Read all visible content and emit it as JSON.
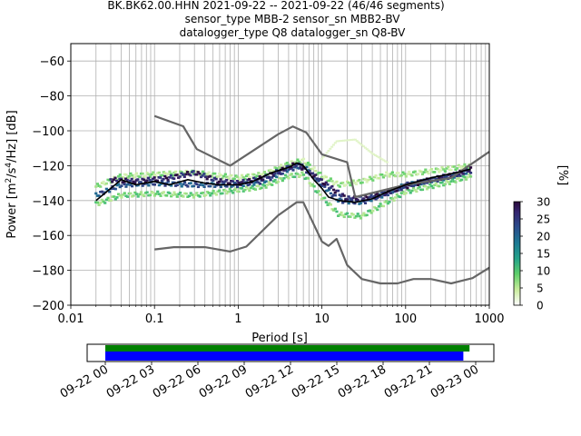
{
  "title_lines": [
    "BK.BK62.00.HHN   2021-09-22 -- 2021-09-22  (46/46 segments)",
    "sensor_type MBB-2 sensor_sn MBB2-BV",
    "datalogger_type Q8 datalogger_sn Q8-BV"
  ],
  "chart_data": {
    "type": "heatmap",
    "xlabel": "Period [s]",
    "ylabel_parts": [
      "Power [m",
      "2",
      "/s",
      "4",
      "/Hz] [dB]"
    ],
    "xscale": "log",
    "xlim": [
      0.01,
      1000
    ],
    "ylim": [
      -200,
      -50
    ],
    "grid": true,
    "x_ticks": [
      {
        "v": 0.01,
        "label": "0.01"
      },
      {
        "v": 0.1,
        "label": "0.1"
      },
      {
        "v": 1,
        "label": "1"
      },
      {
        "v": 10,
        "label": "10"
      },
      {
        "v": 100,
        "label": "100"
      },
      {
        "v": 1000,
        "label": "1000"
      }
    ],
    "y_ticks": [
      {
        "v": -60,
        "label": "−60"
      },
      {
        "v": -80,
        "label": "−80"
      },
      {
        "v": -100,
        "label": "−100"
      },
      {
        "v": -120,
        "label": "−120"
      },
      {
        "v": -140,
        "label": "−140"
      },
      {
        "v": -160,
        "label": "−160"
      },
      {
        "v": -180,
        "label": "−180"
      },
      {
        "v": -200,
        "label": "−200"
      }
    ],
    "noise_model_high": [
      [
        0.1,
        -91.5
      ],
      [
        0.22,
        -97.4
      ],
      [
        0.32,
        -110.5
      ],
      [
        0.8,
        -120
      ],
      [
        3,
        -102
      ],
      [
        4.5,
        -97.5
      ],
      [
        6.5,
        -101
      ],
      [
        10,
        -113.5
      ],
      [
        20,
        -118
      ],
      [
        25,
        -138
      ],
      [
        100,
        -131
      ],
      [
        350,
        -127
      ],
      [
        1000,
        -112
      ]
    ],
    "noise_model_low": [
      [
        0.1,
        -168
      ],
      [
        0.17,
        -166.7
      ],
      [
        0.4,
        -166.7
      ],
      [
        0.8,
        -169.2
      ],
      [
        1.25,
        -166.4
      ],
      [
        3,
        -148.5
      ],
      [
        5,
        -141
      ],
      [
        6,
        -141
      ],
      [
        10,
        -163.5
      ],
      [
        12,
        -166
      ],
      [
        15,
        -162
      ],
      [
        20,
        -177
      ],
      [
        30,
        -185
      ],
      [
        50,
        -187.5
      ],
      [
        80,
        -187.5
      ],
      [
        124,
        -185
      ],
      [
        200,
        -185
      ],
      [
        350,
        -187.5
      ],
      [
        630,
        -184.5
      ],
      [
        1000,
        -178.5
      ]
    ],
    "mean_curve": [
      [
        0.02,
        -140
      ],
      [
        0.03,
        -133
      ],
      [
        0.04,
        -128
      ],
      [
        0.06,
        -131
      ],
      [
        0.1,
        -129
      ],
      [
        0.15,
        -131
      ],
      [
        0.25,
        -128
      ],
      [
        0.4,
        -130
      ],
      [
        0.6,
        -131
      ],
      [
        1,
        -131
      ],
      [
        1.5,
        -129
      ],
      [
        2.5,
        -124
      ],
      [
        4,
        -121
      ],
      [
        5,
        -118.5
      ],
      [
        6,
        -120
      ],
      [
        8,
        -128
      ],
      [
        10,
        -133
      ],
      [
        12,
        -138
      ],
      [
        16,
        -140
      ],
      [
        25,
        -141
      ],
      [
        40,
        -139
      ],
      [
        60,
        -135
      ],
      [
        100,
        -131
      ],
      [
        200,
        -127
      ],
      [
        400,
        -124
      ],
      [
        600,
        -122
      ]
    ],
    "density_bands": [
      {
        "x": [
          0.02,
          0.04,
          0.1,
          0.3,
          1,
          2,
          4,
          6,
          10,
          16,
          30,
          60,
          100,
          300,
          600
        ],
        "y": [
          -132,
          -126,
          -125,
          -124,
          -127,
          -125,
          -119,
          -117,
          -126,
          -131,
          -129,
          -125,
          -125,
          -122,
          -120
        ],
        "pct": 6
      },
      {
        "x": [
          0.02,
          0.04,
          0.1,
          0.3,
          1,
          2,
          4,
          6,
          10,
          16,
          30,
          60,
          100,
          300,
          600
        ],
        "y": [
          -142,
          -137,
          -136,
          -137,
          -134,
          -132,
          -126,
          -125,
          -138,
          -148,
          -149,
          -141,
          -135,
          -130,
          -126
        ],
        "pct": 8
      },
      {
        "x": [
          0.02,
          0.04,
          0.1,
          0.3,
          1,
          2,
          4,
          6,
          10,
          16,
          30,
          60,
          100,
          300,
          600
        ],
        "y": [
          -137,
          -131,
          -130,
          -131,
          -131,
          -129,
          -122,
          -120,
          -131,
          -140,
          -141,
          -136,
          -131,
          -127,
          -123
        ],
        "pct": 22
      },
      {
        "x": [
          0.03,
          0.06,
          0.15,
          0.3,
          0.6,
          1,
          2,
          5,
          10,
          20,
          40,
          100,
          200,
          400,
          600
        ],
        "y": [
          -128,
          -129,
          -127,
          -124,
          -129,
          -130,
          -127,
          -119,
          -129,
          -139,
          -138,
          -132,
          -128,
          -125,
          -122
        ],
        "pct": 27
      }
    ],
    "faint_spikes": [
      {
        "x": [
          10,
          15,
          25,
          40,
          60
        ],
        "y": [
          -116,
          -106,
          -105,
          -113,
          -118
        ],
        "pct": 1
      }
    ],
    "colorbar": {
      "label": "[%]",
      "range": [
        0,
        30
      ],
      "ticks": [
        0,
        5,
        10,
        15,
        20,
        25,
        30
      ]
    }
  },
  "timeline": {
    "tick_labels": [
      "09-22 00",
      "09-22 03",
      "09-22 06",
      "09-22 09",
      "09-22 12",
      "09-22 15",
      "09-22 18",
      "09-22 21",
      "09-23 00"
    ],
    "hours_span": 27,
    "green_bar_hours": [
      0,
      23.6
    ],
    "blue_bar_hours": [
      0,
      23.2
    ],
    "green_color": "#008000",
    "blue_color": "#0000ff"
  }
}
